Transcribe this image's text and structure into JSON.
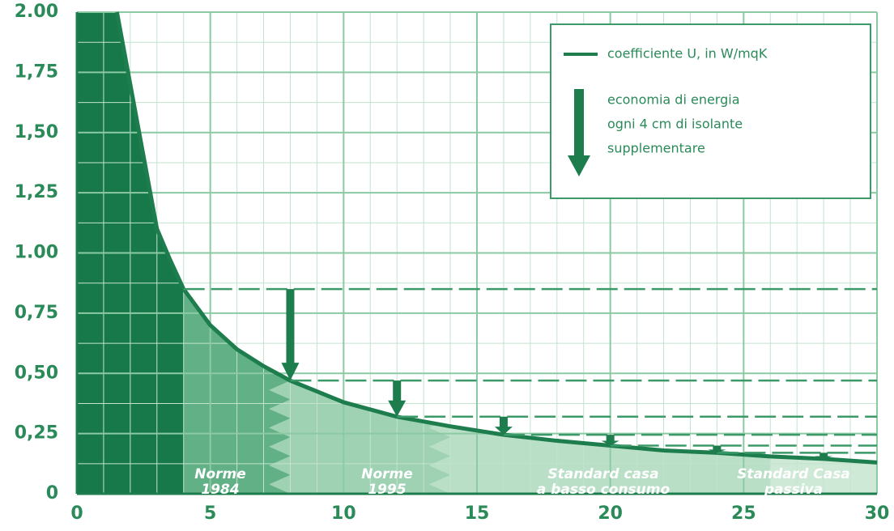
{
  "chart_data": {
    "type": "area",
    "x": [
      1.5,
      2,
      2.5,
      3,
      3.5,
      4,
      5,
      6,
      7,
      8,
      10,
      12,
      14,
      16,
      18,
      20,
      22,
      24,
      26,
      28,
      30
    ],
    "series": [
      {
        "name": "coefficiente U, in W/mqK",
        "color": "#1d7d4d",
        "values": [
          2.0,
          1.7,
          1.4,
          1.1,
          0.97,
          0.85,
          0.7,
          0.6,
          0.53,
          0.47,
          0.38,
          0.32,
          0.28,
          0.245,
          0.22,
          0.2,
          0.18,
          0.17,
          0.155,
          0.145,
          0.13
        ]
      }
    ],
    "savings": {
      "name": [
        "economia di energia",
        "ogni 4 cm di isolante",
        "supplementare"
      ],
      "x": [
        4,
        8,
        12,
        16,
        20,
        24,
        28
      ],
      "values": [
        0.85,
        0.47,
        0.32,
        0.245,
        0.2,
        0.17,
        0.145
      ]
    },
    "zones": [
      {
        "lines": [
          "Norme",
          "1984"
        ]
      },
      {
        "lines": [
          "Norme",
          "1995"
        ]
      },
      {
        "lines": [
          "Standard casa",
          "a basso consumo"
        ]
      },
      {
        "lines": [
          "Standard Casa",
          "passiva"
        ]
      }
    ],
    "xlim": [
      0,
      30
    ],
    "ylim": [
      0,
      2
    ],
    "xticks": [
      0,
      5,
      10,
      15,
      20,
      25,
      30
    ],
    "yticks": [
      0,
      {
        "value": 0.25,
        "label": "0,25"
      },
      {
        "value": 0.5,
        "label": "0,50"
      },
      {
        "value": 0.75,
        "label": "0,75"
      },
      {
        "value": 1,
        "label": "1.00"
      },
      {
        "value": 1.25,
        "label": "1,25"
      },
      {
        "value": 1.5,
        "label": "1,50"
      },
      {
        "value": 1.75,
        "label": "1,75"
      },
      {
        "value": 2,
        "label": "2.00"
      }
    ],
    "grid": true
  }
}
